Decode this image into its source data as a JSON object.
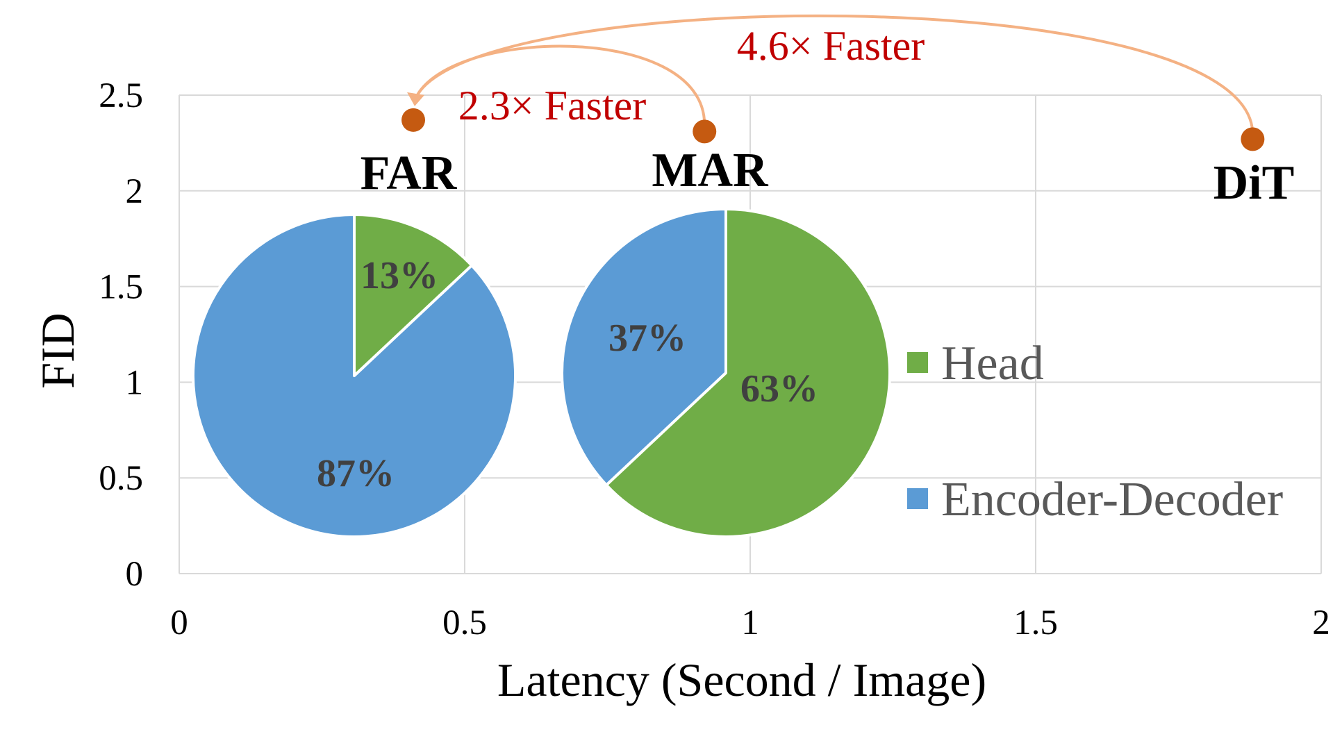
{
  "colors": {
    "head": "#70ad47",
    "encoder_decoder": "#5b9bd5",
    "point": "#c55a11",
    "arrow": "#f4b183",
    "speed_text": "#c00000",
    "grid": "#d9d9d9"
  },
  "chart_data": {
    "type": "scatter",
    "xlabel": "Latency (Second / Image)",
    "ylabel": "FID",
    "xlim": [
      0,
      2
    ],
    "ylim": [
      0,
      2.5
    ],
    "x_ticks": [
      "0",
      "0.5",
      "1",
      "1.5",
      "2"
    ],
    "y_ticks": [
      "0",
      "0.5",
      "1",
      "1.5",
      "2",
      "2.5"
    ],
    "grid": true,
    "legend_position": "right",
    "points": [
      {
        "label": "FAR",
        "x": 0.41,
        "y": 2.37
      },
      {
        "label": "MAR",
        "x": 0.92,
        "y": 2.31
      },
      {
        "label": "DiT",
        "x": 1.88,
        "y": 2.27
      }
    ],
    "pies": [
      {
        "model": "FAR",
        "head_label": "13%",
        "encoder_label": "87%",
        "head_fraction": 0.13
      },
      {
        "model": "MAR",
        "head_label": "63%",
        "encoder_label": "37%",
        "head_fraction": 0.63
      }
    ],
    "legend": [
      "Head",
      "Encoder-Decoder"
    ],
    "annotations": [
      {
        "text": "2.3× Faster",
        "from": "MAR",
        "to": "FAR"
      },
      {
        "text": "4.6× Faster",
        "from": "DiT",
        "to": "FAR"
      }
    ]
  }
}
